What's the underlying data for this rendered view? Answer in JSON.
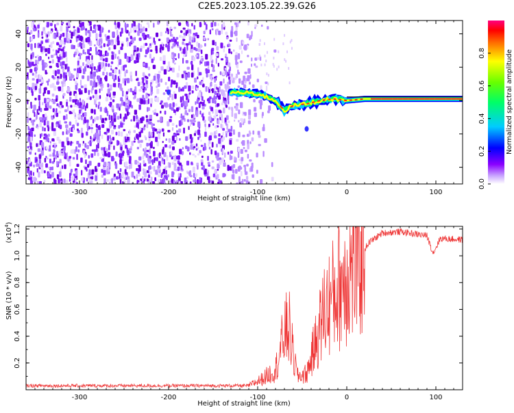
{
  "title": "C2E5.2023.105.22.39.G26",
  "chart_data": [
    {
      "type": "heatmap",
      "title": "C2E5.2023.105.22.39.G26",
      "xlabel": "Height of straight line (km)",
      "ylabel": "Frequency (Hz)",
      "xlim": [
        -360,
        130
      ],
      "ylim": [
        -50,
        48
      ],
      "xticks": [
        -300,
        -200,
        -100,
        0,
        100
      ],
      "yticks": [
        -40,
        -20,
        0,
        20,
        40
      ],
      "colorbar": {
        "label": "Normalized spectral amplitude",
        "range": [
          0.0,
          1.0
        ],
        "ticks": [
          0.0,
          0.2,
          0.4,
          0.6,
          0.8
        ],
        "colormap": [
          "#ffffff",
          "#8a00ff",
          "#0000ff",
          "#00ffff",
          "#00ff00",
          "#ffff00",
          "#ff0000",
          "#ff0080"
        ]
      },
      "features": {
        "noise_band_x": [
          -360,
          -100
        ],
        "signal_line": [
          {
            "x": -130,
            "y": 5
          },
          {
            "x": -100,
            "y": 4
          },
          {
            "x": -80,
            "y": 0
          },
          {
            "x": -70,
            "y": -6
          },
          {
            "x": -60,
            "y": -3
          },
          {
            "x": -45,
            "y": -2
          },
          {
            "x": -30,
            "y": 0
          },
          {
            "x": -15,
            "y": 1
          },
          {
            "x": 0,
            "y": 0
          },
          {
            "x": 20,
            "y": 1
          },
          {
            "x": 60,
            "y": 1
          },
          {
            "x": 100,
            "y": 1
          },
          {
            "x": 130,
            "y": 1
          }
        ]
      }
    },
    {
      "type": "line",
      "xlabel": "Height of straight line (km)",
      "ylabel": "SNR (10 * v/v)",
      "yexponent": "(x10",
      "yexponent_power": "4",
      "yexponent_close": ")",
      "xlim": [
        -360,
        130
      ],
      "ylim": [
        0,
        12200
      ],
      "xticks": [
        -300,
        -200,
        -100,
        0,
        100
      ],
      "yticks": [
        2000,
        4000,
        6000,
        8000,
        10000,
        12000
      ],
      "ytick_labels": [
        "0.2",
        "0.4",
        "0.6",
        "0.8",
        "1.0",
        "1.2"
      ],
      "color": "#ee3333",
      "envelope": [
        {
          "x": -360,
          "y": 300
        },
        {
          "x": -110,
          "y": 300
        },
        {
          "x": -95,
          "y": 800
        },
        {
          "x": -80,
          "y": 1500
        },
        {
          "x": -70,
          "y": 4200
        },
        {
          "x": -65,
          "y": 4800
        },
        {
          "x": -60,
          "y": 2500
        },
        {
          "x": -55,
          "y": 1000
        },
        {
          "x": -45,
          "y": 1200
        },
        {
          "x": -35,
          "y": 3500
        },
        {
          "x": -25,
          "y": 6000
        },
        {
          "x": -15,
          "y": 7000
        },
        {
          "x": -5,
          "y": 8200
        },
        {
          "x": 10,
          "y": 9500
        },
        {
          "x": 25,
          "y": 11000
        },
        {
          "x": 40,
          "y": 11700
        },
        {
          "x": 60,
          "y": 11800
        },
        {
          "x": 90,
          "y": 11500
        },
        {
          "x": 97,
          "y": 10200
        },
        {
          "x": 105,
          "y": 11300
        },
        {
          "x": 130,
          "y": 11200
        }
      ]
    }
  ]
}
